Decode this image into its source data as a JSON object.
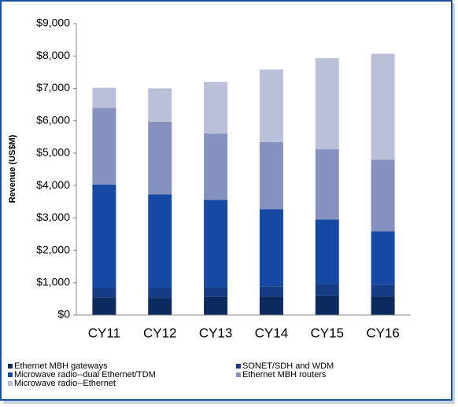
{
  "chart_data": {
    "type": "stacked_bar",
    "y_label": "Revenue (US$M)",
    "categories": [
      "CY11",
      "CY12",
      "CY13",
      "CY14",
      "CY15",
      "CY16"
    ],
    "series": [
      {
        "name": "Ethernet MBH gateways",
        "color": "#0c2a5e",
        "values": [
          550,
          530,
          560,
          580,
          600,
          580
        ]
      },
      {
        "name": "SONET/SDH and WDM",
        "color": "#163c86",
        "values": [
          300,
          320,
          310,
          310,
          360,
          360
        ]
      },
      {
        "name": "Microwave radio--dual Ethernet/TDM",
        "color": "#1549a3",
        "values": [
          3180,
          2880,
          2690,
          2380,
          1990,
          1650
        ]
      },
      {
        "name": "Ethernet MBH routers",
        "color": "#8592c0",
        "values": [
          2370,
          2240,
          2050,
          2070,
          2170,
          2210
        ]
      },
      {
        "name": "Microwave radio--Ethernet",
        "color": "#b9c0d8",
        "values": [
          620,
          1030,
          1590,
          2240,
          2810,
          3270
        ]
      }
    ],
    "ylim": [
      0,
      9000
    ],
    "yticks": [
      {
        "value": 0,
        "label": "$0"
      },
      {
        "value": 1000,
        "label": "$1,000"
      },
      {
        "value": 2000,
        "label": "$2,000"
      },
      {
        "value": 3000,
        "label": "$3,000"
      },
      {
        "value": 4000,
        "label": "$4,000"
      },
      {
        "value": 5000,
        "label": "$5,000"
      },
      {
        "value": 6000,
        "label": "$6,000"
      },
      {
        "value": 7000,
        "label": "$7,000"
      },
      {
        "value": 8000,
        "label": "$8,000"
      },
      {
        "value": 9000,
        "label": "$9,000"
      }
    ]
  }
}
